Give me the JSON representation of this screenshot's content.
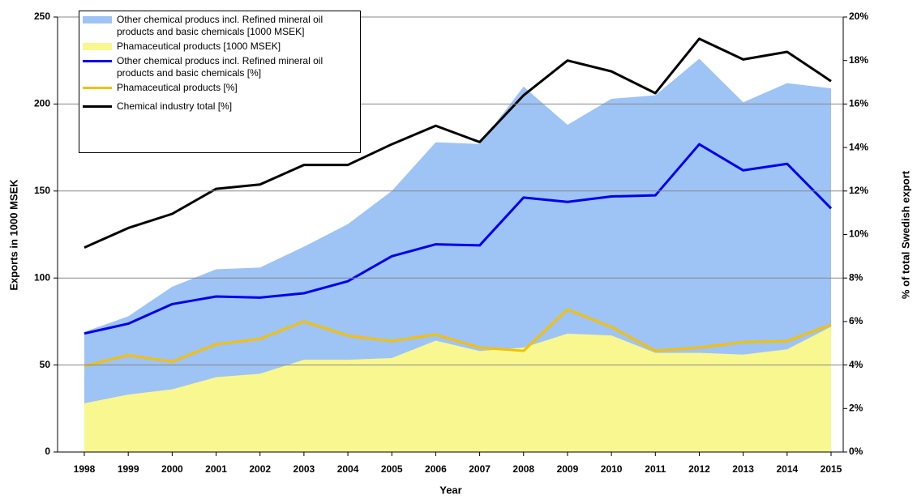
{
  "chart_data": {
    "type": "area",
    "xlabel": "Year",
    "ylabel": "Exports in 1000 MSEK",
    "y2label": "% of total Swedish export",
    "categories": [
      "1998",
      "1999",
      "2000",
      "2001",
      "2002",
      "2003",
      "2004",
      "2005",
      "2006",
      "2007",
      "2008",
      "2009",
      "2010",
      "2011",
      "2012",
      "2013",
      "2014",
      "2015"
    ],
    "ylim": [
      0,
      250
    ],
    "yticks": [
      0,
      50,
      100,
      150,
      200,
      250
    ],
    "y2lim": [
      0,
      20
    ],
    "y2ticks": [
      {
        "value": 0,
        "label": "0%"
      },
      {
        "value": 2,
        "label": "2%"
      },
      {
        "value": 4,
        "label": "4%"
      },
      {
        "value": 6,
        "label": "6%"
      },
      {
        "value": 8,
        "label": "8%"
      },
      {
        "value": 10,
        "label": "10%"
      },
      {
        "value": 12,
        "label": "12%"
      },
      {
        "value": 14,
        "label": "14%"
      },
      {
        "value": 16,
        "label": "16%"
      },
      {
        "value": 18,
        "label": "18%"
      },
      {
        "value": 20,
        "label": "20%"
      }
    ],
    "grid": true,
    "legend": "upper left",
    "series": [
      {
        "name": "Other chemical producs incl. Refined mineral oil products and basic chemicals [1000 MSEK]",
        "type": "area",
        "stacked": true,
        "color": "#9ec3f5",
        "values": [
          41,
          45,
          59,
          62,
          61,
          65,
          78,
          96,
          114,
          119,
          150,
          120,
          136,
          148,
          169,
          145,
          153,
          137
        ]
      },
      {
        "name": "Phamaceutical products [1000 MSEK]",
        "type": "area",
        "stacked": true,
        "color": "#f9f78f",
        "values": [
          28,
          33,
          36,
          43,
          45,
          53,
          53,
          54,
          64,
          58,
          60,
          68,
          67,
          57,
          57,
          56,
          59,
          72
        ]
      },
      {
        "name": "Other chemical producs incl. Refined mineral oil products and basic chemicals [%]",
        "type": "line",
        "axis": "y2",
        "color": "#0000ee",
        "values": [
          5.45,
          5.9,
          6.8,
          7.15,
          7.1,
          7.3,
          7.85,
          9.0,
          9.55,
          9.5,
          11.7,
          11.5,
          11.75,
          11.8,
          14.15,
          12.95,
          13.25,
          11.2
        ]
      },
      {
        "name": "Phamaceutical products [%]",
        "type": "line",
        "axis": "y2",
        "color": "#f5c000",
        "values": [
          3.95,
          4.45,
          4.15,
          4.95,
          5.2,
          6.0,
          5.35,
          5.1,
          5.4,
          4.8,
          4.65,
          6.55,
          5.75,
          4.65,
          4.8,
          5.05,
          5.1,
          5.85
        ]
      },
      {
        "name": "Chemical industry total [%]",
        "type": "line",
        "axis": "y2",
        "color": "#000000",
        "values": [
          9.4,
          10.3,
          10.95,
          12.1,
          12.3,
          13.2,
          13.2,
          14.15,
          15.0,
          14.25,
          16.4,
          18.0,
          17.5,
          16.5,
          19.0,
          18.05,
          18.4,
          17.05
        ]
      }
    ]
  }
}
